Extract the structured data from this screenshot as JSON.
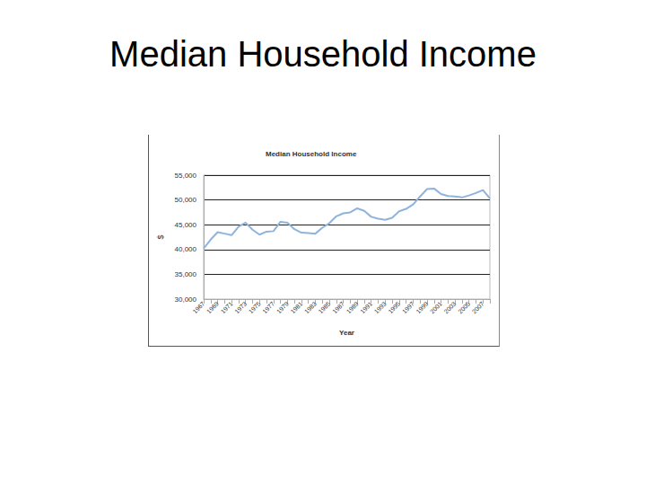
{
  "slide": {
    "title": "Median Household Income"
  },
  "chart_data": {
    "type": "line",
    "title": "Median Household Income",
    "xlabel": "Year",
    "ylabel": "$",
    "categories": [
      "1967",
      null,
      "1969",
      null,
      "1971",
      null,
      "1973",
      null,
      "1975",
      null,
      "1977",
      null,
      "1979",
      null,
      "1981",
      null,
      "1983",
      null,
      "1985",
      null,
      "1987",
      null,
      "1989",
      null,
      "1991",
      null,
      "1993",
      null,
      "1995",
      null,
      "1997",
      null,
      "1999",
      null,
      "2001",
      null,
      "2003",
      null,
      "2005",
      null,
      "2007",
      null
    ],
    "values": [
      40200,
      42000,
      43500,
      43200,
      42900,
      44600,
      45400,
      44000,
      43000,
      43600,
      43700,
      45600,
      45400,
      44100,
      43400,
      43300,
      43200,
      44400,
      45300,
      46700,
      47300,
      47500,
      48300,
      47800,
      46600,
      46200,
      46000,
      46400,
      47700,
      48200,
      49100,
      50700,
      52200,
      52300,
      51200,
      50800,
      50700,
      50500,
      50900,
      51400,
      52000,
      50300
    ],
    "color": "#8fb4dc",
    "ylim": [
      30000,
      55000
    ],
    "yticks": [
      {
        "value": 30000,
        "label": "30,000"
      },
      {
        "value": 35000,
        "label": "35,000"
      },
      {
        "value": 40000,
        "label": "40,000"
      },
      {
        "value": 45000,
        "label": "45,000"
      },
      {
        "value": 50000,
        "label": "50,000"
      },
      {
        "value": 55000,
        "label": "55,000"
      }
    ],
    "grid": true
  }
}
